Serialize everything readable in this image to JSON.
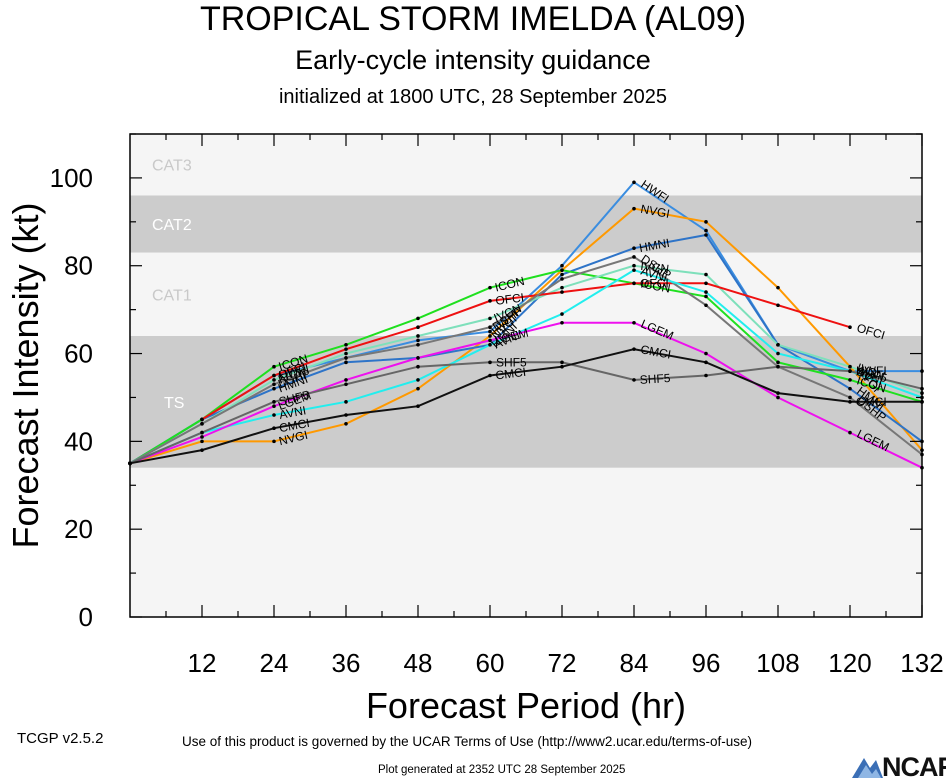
{
  "header": {
    "title": "TROPICAL STORM IMELDA (AL09)",
    "subtitle": "Early-cycle intensity guidance",
    "init": "initialized at 1800 UTC, 28 September 2025"
  },
  "footer": {
    "version": "TCGP v2.5.2",
    "terms": "Use of this product is governed by the UCAR Terms of Use (http://www2.ucar.edu/terms-of-use)",
    "generated": "Plot generated at 2352 UTC   28 September 2025",
    "logo": "NCAR"
  },
  "chart_data": {
    "type": "line",
    "title": "TROPICAL STORM IMELDA (AL09)",
    "xlabel": "Forecast Period (hr)",
    "ylabel": "Forecast Intensity (kt)",
    "xlim": [
      0,
      132
    ],
    "ylim": [
      0,
      110
    ],
    "xticks": [
      12,
      24,
      36,
      48,
      60,
      72,
      84,
      96,
      108,
      120,
      132
    ],
    "yticks": [
      0,
      20,
      40,
      60,
      80,
      100
    ],
    "categories_bands": [
      {
        "name": "TS",
        "from": 34,
        "to": 64,
        "color": "#cccccc"
      },
      {
        "name": "CAT1",
        "from": 64,
        "to": 83,
        "color": "#f5f5f5"
      },
      {
        "name": "CAT2",
        "from": 83,
        "to": 96,
        "color": "#cccccc"
      },
      {
        "name": "CAT3",
        "from": 96,
        "to": 110,
        "color": "#f5f5f5"
      }
    ],
    "series": [
      {
        "name": "HWFI",
        "color": "#3a8de0",
        "x": [
          0,
          12,
          24,
          36,
          48,
          60,
          72,
          84,
          96,
          108,
          120,
          132
        ],
        "y": [
          35,
          45,
          55,
          59,
          63,
          65,
          80,
          99,
          88,
          62,
          56,
          56
        ]
      },
      {
        "name": "NVGI",
        "color": "#ff9900",
        "x": [
          0,
          12,
          24,
          36,
          48,
          60,
          72,
          84,
          96,
          108,
          120,
          132
        ],
        "y": [
          35,
          40,
          40,
          44,
          52,
          64,
          79,
          93,
          90,
          75,
          57,
          38
        ]
      },
      {
        "name": "HMNI",
        "color": "#2e74c8",
        "x": [
          0,
          12,
          24,
          36,
          48,
          60,
          72,
          84,
          96,
          108,
          120,
          132
        ],
        "y": [
          35,
          45,
          52,
          58,
          59,
          62,
          78,
          84,
          87,
          62,
          52,
          40
        ]
      },
      {
        "name": "ICON",
        "color": "#1fe01f",
        "x": [
          0,
          12,
          24,
          36,
          48,
          60,
          72,
          84,
          96,
          108,
          120,
          132
        ],
        "y": [
          35,
          45,
          57,
          62,
          68,
          75,
          79,
          76,
          73,
          58,
          54,
          49
        ]
      },
      {
        "name": "IVCN",
        "color": "#7ee0bb",
        "x": [
          0,
          12,
          24,
          36,
          48,
          60,
          72,
          84,
          96,
          108,
          120,
          132
        ],
        "y": [
          35,
          44,
          54,
          60,
          64,
          68,
          75,
          80,
          78,
          62,
          57,
          51
        ]
      },
      {
        "name": "OFCI",
        "color": "#ee1111",
        "x": [
          12,
          24,
          36,
          48,
          60,
          72,
          84,
          96,
          108,
          120
        ],
        "y": [
          45,
          55,
          61,
          66,
          72,
          74,
          76,
          76,
          71,
          66
        ]
      },
      {
        "name": "DSHP",
        "color": "#777777",
        "x": [
          0,
          12,
          24,
          36,
          48,
          60,
          72,
          84,
          96,
          108,
          120,
          132
        ],
        "y": [
          35,
          44,
          53,
          59,
          62,
          66,
          77,
          82,
          71,
          57,
          50,
          37
        ]
      },
      {
        "name": "AVNI",
        "color": "#22eeee",
        "x": [
          0,
          12,
          24,
          36,
          48,
          60,
          72,
          84,
          96,
          108,
          120,
          132
        ],
        "y": [
          35,
          42,
          46,
          49,
          54,
          62,
          69,
          79,
          74,
          60,
          56,
          50
        ]
      },
      {
        "name": "LGEM",
        "color": "#ee11ee",
        "x": [
          0,
          12,
          24,
          36,
          48,
          60,
          72,
          84,
          96,
          108,
          120,
          132
        ],
        "y": [
          35,
          41,
          48,
          54,
          59,
          63,
          67,
          67,
          60,
          50,
          42,
          34
        ]
      },
      {
        "name": "SHF5",
        "color": "#666666",
        "x": [
          0,
          12,
          24,
          36,
          48,
          60,
          72,
          84,
          96,
          108,
          120,
          132
        ],
        "y": [
          35,
          42,
          49,
          53,
          57,
          58,
          58,
          54,
          55,
          57,
          56,
          52
        ]
      },
      {
        "name": "CMCI",
        "color": "#111111",
        "x": [
          0,
          12,
          24,
          36,
          48,
          60,
          72,
          84,
          96,
          108,
          120,
          132
        ],
        "y": [
          35,
          38,
          43,
          46,
          48,
          55,
          57,
          61,
          58,
          51,
          49,
          49
        ]
      }
    ]
  }
}
